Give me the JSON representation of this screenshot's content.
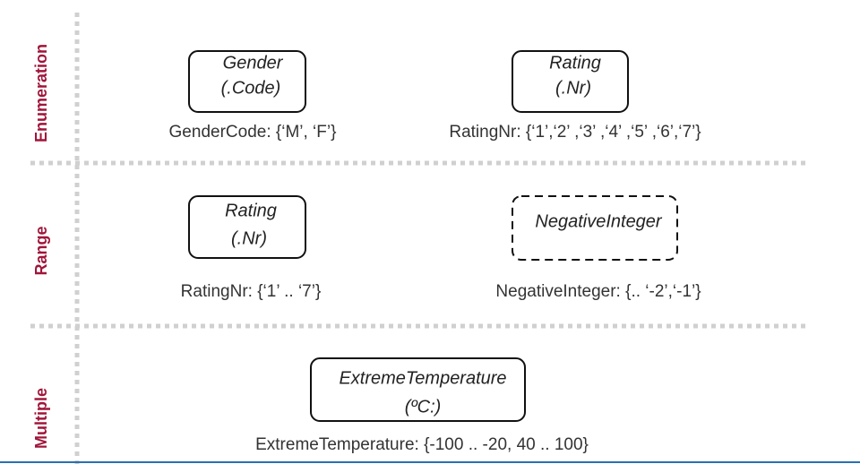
{
  "rows": [
    {
      "label": "Enumeration",
      "nodes": [
        {
          "lines": [
            "Gender",
            "(.Code)"
          ],
          "constraint": "GenderCode: {‘M’, ‘F’}"
        },
        {
          "lines": [
            "Rating",
            "(.Nr)"
          ],
          "constraint": "RatingNr: {‘1’,‘2’ ,‘3’ ,‘4’ ,‘5’ ,‘6’,‘7’}"
        }
      ]
    },
    {
      "label": "Range",
      "nodes": [
        {
          "lines": [
            "Rating",
            "(.Nr)"
          ],
          "constraint": "RatingNr: {‘1’ .. ‘7’}"
        },
        {
          "lines": [
            "NegativeInteger"
          ],
          "constraint": "NegativeInteger: {.. ‘-2’,‘-1’}"
        }
      ]
    },
    {
      "label": "Multiple",
      "nodes": [
        {
          "lines": [
            "ExtremeTemperature",
            "(ºC:)"
          ],
          "constraint": "ExtremeTemperature: {-100 .. -20, 40 .. 100}"
        }
      ]
    }
  ]
}
